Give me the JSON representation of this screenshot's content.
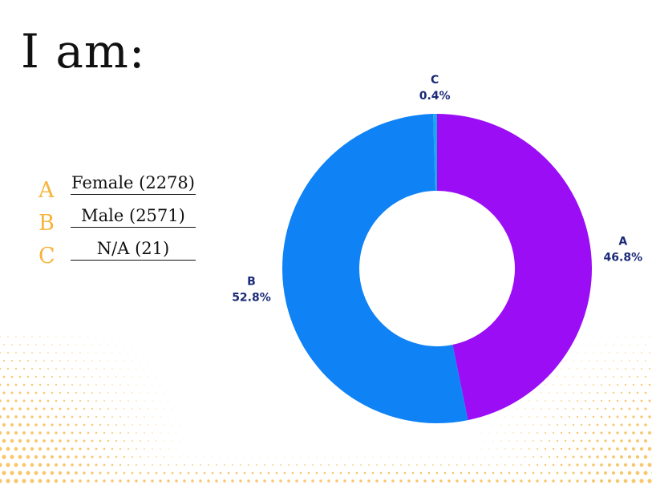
{
  "title": "I am:",
  "legend": [
    {
      "letter": "A",
      "text": "Female (2278)"
    },
    {
      "letter": "B",
      "text": "Male (2571)"
    },
    {
      "letter": "C",
      "text": "N/A (21)"
    }
  ],
  "colors": {
    "accent_letter": "#f6b43c",
    "slice_a": "#9a0df5",
    "slice_b": "#0f82f5",
    "slice_c": "#1aa6f0",
    "label": "#1b2a78",
    "dots": "#f6b43c"
  },
  "chart_data": {
    "type": "pie",
    "donut": true,
    "categories": [
      "A",
      "B",
      "C"
    ],
    "values": [
      46.8,
      52.8,
      0.4
    ],
    "labels": [
      "46.8%",
      "52.8%",
      "0.4%"
    ],
    "counts": [
      2278,
      2571,
      21
    ],
    "title": "",
    "legend": "left"
  }
}
